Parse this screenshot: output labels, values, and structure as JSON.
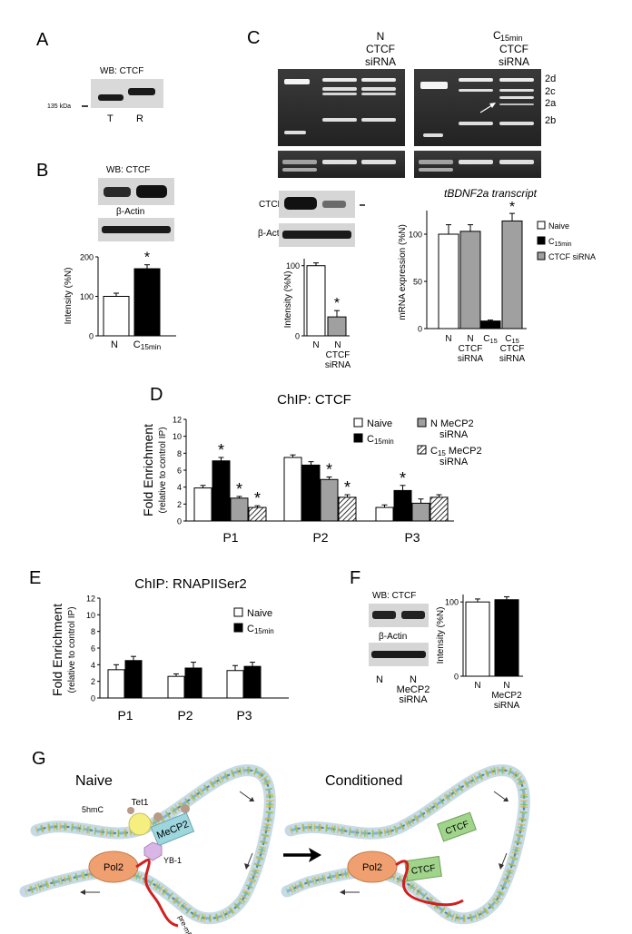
{
  "panels": {
    "A": {
      "letter": "A",
      "wb_label": "WB: CTCF",
      "marker": "135 kDa",
      "lanes": [
        "T",
        "R"
      ]
    },
    "B": {
      "letter": "B",
      "wb_label": "WB: CTCF",
      "actin_label": "β-Actin",
      "ylabel": "Intensity (%N)",
      "ticks": [
        "0",
        "100",
        "200"
      ],
      "categories": [
        "N",
        "C15min"
      ],
      "values": [
        100,
        170
      ],
      "errors": [
        8,
        10
      ],
      "sig": "*"
    },
    "C": {
      "letter": "C",
      "gel_lanes_left": [
        "N",
        "N\nCTCF\nsiRNA"
      ],
      "gel_lanes_right": [
        "C15min",
        "C15min\nCTCF\nsiRNA"
      ],
      "bands": [
        "2d",
        "2c",
        "2a",
        "2b"
      ],
      "ctcf_label": "CTCF",
      "actin_label": "β-Actin",
      "wb_ylabel": "Intensity (%N)",
      "wb_ticks": [
        "0",
        "100"
      ],
      "wb_categories": [
        "N",
        "N\nCTCF\nsiRNA"
      ],
      "wb_values": [
        100,
        27
      ],
      "wb_errors": [
        4,
        9
      ],
      "wb_sig": "*",
      "transcript_title": "tBDNF2a transcript",
      "mrna_ylabel": "mRNA expression (%N)",
      "mrna_ticks": [
        "0",
        "50",
        "100"
      ],
      "mrna_categories": [
        "N",
        "N\nCTCF\nsiRNA",
        "C15",
        "C15\nCTCF\nsiRNA"
      ],
      "mrna_values": [
        100,
        103,
        8,
        114
      ],
      "mrna_errors": [
        10,
        7,
        1,
        8
      ],
      "mrna_sig": "*",
      "legend": [
        "Naive",
        "C15min",
        "CTCF siRNA"
      ]
    },
    "D": {
      "letter": "D",
      "title": "ChIP: CTCF",
      "ylabel": "Fold Enrichment",
      "ylabel2": "(relative to control IP)",
      "ticks": [
        "0",
        "2",
        "4",
        "6",
        "8",
        "10",
        "12"
      ],
      "legend": [
        "Naive",
        "C15min",
        "N MeCP2\nsiRNA",
        "C15 MeCP2\nsiRNA"
      ]
    },
    "E": {
      "letter": "E",
      "title": "ChIP: RNAPIISer2",
      "ylabel": "Fold Enrichment",
      "ylabel2": "(relative to control IP)",
      "ticks": [
        "0",
        "2",
        "4",
        "6",
        "8",
        "10",
        "12"
      ],
      "legend": [
        "Naive",
        "C15min"
      ]
    },
    "F": {
      "letter": "F",
      "wb_label": "WB: CTCF",
      "actin_label": "β-Actin",
      "lanes": [
        "N",
        "N\nMeCP2\nsiRNA"
      ],
      "ylabel": "Intensity (%N)",
      "ticks": [
        "0",
        "100"
      ],
      "categories": [
        "N",
        "N\nMeCP2\nsiRNA"
      ],
      "values": [
        100,
        103
      ],
      "errors": [
        4,
        4
      ]
    },
    "G": {
      "letter": "G",
      "naive_title": "Naive",
      "cond_title": "Conditioned",
      "labels_naive": [
        "5hmC",
        "Tet1",
        "MeCP2",
        "YB-1",
        "Pol2",
        "pre-mRNA"
      ],
      "labels_cond": [
        "CTCF",
        "CTCF",
        "Pol2"
      ]
    }
  },
  "colors": {
    "naive": "#ffffff",
    "c15": "#000000",
    "sirna": "#a0a0a0",
    "gel": "#2a2a2a",
    "dna_blue": "#7fb6d4",
    "pol2": "#f0a070",
    "tet1": "#f5ef80",
    "mecp2": "#9ed6de",
    "ctcf": "#9fd48a",
    "yb1": "#d9b6e6",
    "premrna": "#d0201e"
  },
  "chart_data": [
    {
      "type": "bar",
      "panel": "B",
      "categories": [
        "N",
        "C15min"
      ],
      "values": [
        100,
        170
      ],
      "ylabel": "Intensity (%N)",
      "ylim": [
        0,
        200
      ]
    },
    {
      "type": "bar",
      "panel": "C-western",
      "categories": [
        "N",
        "N CTCF siRNA"
      ],
      "values": [
        100,
        27
      ],
      "ylabel": "Intensity (%N)",
      "ylim": [
        0,
        110
      ]
    },
    {
      "type": "bar",
      "panel": "C-mRNA",
      "title": "tBDNF2a transcript",
      "categories": [
        "N",
        "N CTCF siRNA",
        "C15",
        "C15 CTCF siRNA"
      ],
      "values": [
        100,
        103,
        8,
        114
      ],
      "ylabel": "mRNA expression (%N)",
      "ylim": [
        0,
        125
      ]
    },
    {
      "type": "bar",
      "panel": "D",
      "title": "ChIP: CTCF",
      "categories": [
        "P1",
        "P2",
        "P3"
      ],
      "series": [
        {
          "name": "Naive",
          "values": [
            3.9,
            7.5,
            1.6
          ],
          "errors": [
            0.3,
            0.3,
            0.3
          ]
        },
        {
          "name": "C15min",
          "values": [
            7.1,
            6.6,
            3.6
          ],
          "errors": [
            0.4,
            0.4,
            0.6
          ]
        },
        {
          "name": "N MeCP2 siRNA",
          "values": [
            2.7,
            4.9,
            2.1
          ],
          "errors": [
            0.2,
            0.3,
            0.5
          ]
        },
        {
          "name": "C15 MeCP2 siRNA",
          "values": [
            1.6,
            2.8,
            2.8
          ],
          "errors": [
            0.2,
            0.3,
            0.3
          ]
        }
      ],
      "significant": [
        [
          false,
          true,
          true,
          true
        ],
        [
          false,
          false,
          true,
          true
        ],
        [
          false,
          true,
          false,
          false
        ]
      ],
      "ylabel": "Fold Enrichment (relative to control IP)",
      "ylim": [
        0,
        12
      ]
    },
    {
      "type": "bar",
      "panel": "E",
      "title": "ChIP: RNAPIISer2",
      "categories": [
        "P1",
        "P2",
        "P3"
      ],
      "series": [
        {
          "name": "Naive",
          "values": [
            3.4,
            2.6,
            3.3
          ],
          "errors": [
            0.6,
            0.3,
            0.6
          ]
        },
        {
          "name": "C15min",
          "values": [
            4.5,
            3.6,
            3.8
          ],
          "errors": [
            0.5,
            0.7,
            0.5
          ]
        }
      ],
      "ylabel": "Fold Enrichment (relative to control IP)",
      "ylim": [
        0,
        12
      ]
    },
    {
      "type": "bar",
      "panel": "F",
      "categories": [
        "N",
        "N MeCP2 siRNA"
      ],
      "values": [
        100,
        103
      ],
      "ylabel": "Intensity (%N)",
      "ylim": [
        0,
        110
      ]
    }
  ]
}
